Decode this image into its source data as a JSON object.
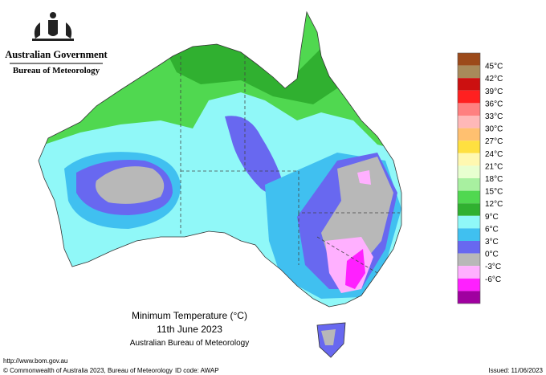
{
  "header": {
    "government": "Australian Government",
    "agency": "Bureau of Meteorology"
  },
  "map": {
    "title": "Minimum Temperature (°C)",
    "date": "11th June 2023",
    "source": "Australian Bureau of Meteorology"
  },
  "legend": {
    "colors": [
      "#9c4a1a",
      "#a88a5a",
      "#cc1010",
      "#ff2020",
      "#ff8080",
      "#ffb8b8",
      "#ffc070",
      "#ffe040",
      "#fff8b0",
      "#e8ffd0",
      "#a8f0a0",
      "#50d850",
      "#30b030",
      "#90f8f8",
      "#40c0f0",
      "#6868f0",
      "#b8b8b8",
      "#ffb0ff",
      "#ff20ff",
      "#a000a0"
    ],
    "labels": [
      "45°C",
      "42°C",
      "39°C",
      "36°C",
      "33°C",
      "30°C",
      "27°C",
      "24°C",
      "21°C",
      "18°C",
      "15°C",
      "12°C",
      "9°C",
      "6°C",
      "3°C",
      "0°C",
      "-3°C",
      "-6°C"
    ]
  },
  "footer": {
    "url": "http://www.bom.gov.au",
    "copyright": "© Commonwealth of Australia 2023, Bureau of Meteorology",
    "id_code": "ID code: AWAP",
    "issued": "Issued: 11/06/2023"
  }
}
